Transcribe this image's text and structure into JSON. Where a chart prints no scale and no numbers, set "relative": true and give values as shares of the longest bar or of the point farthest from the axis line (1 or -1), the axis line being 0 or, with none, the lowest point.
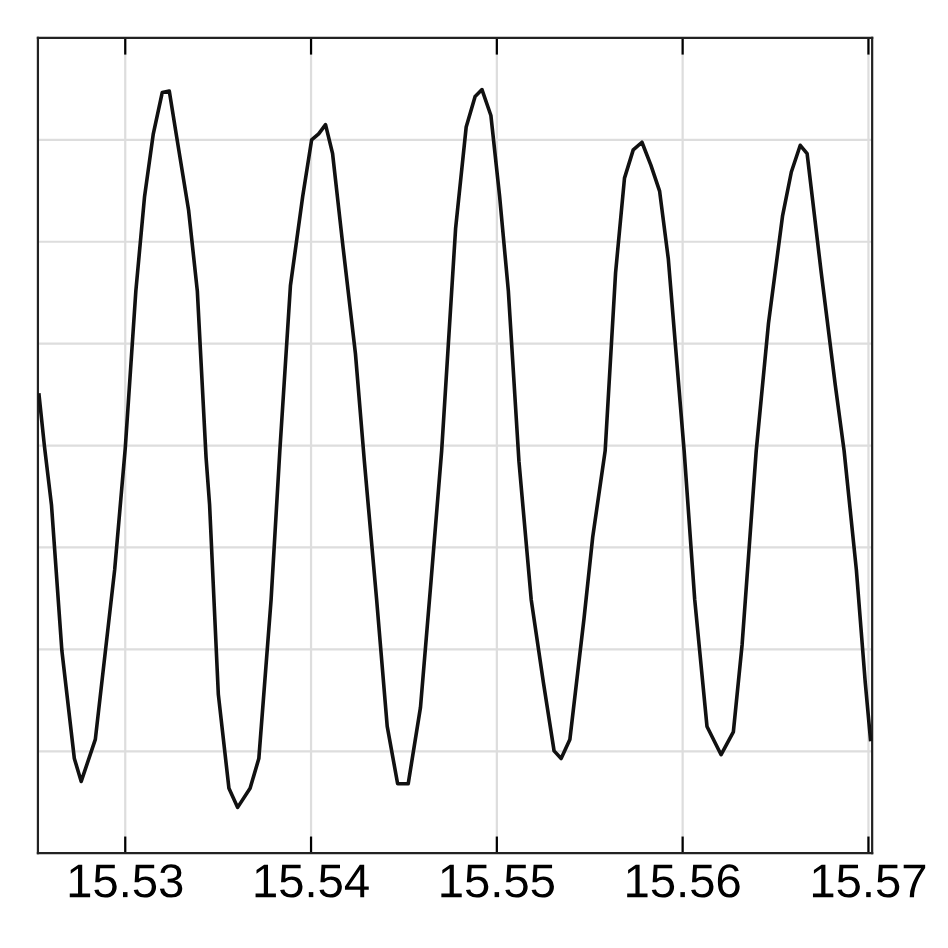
{
  "chart_data": {
    "type": "line",
    "relative": true,
    "grid": true,
    "color": "#111111",
    "xlim": [
      15.5253,
      15.5702
    ],
    "xticks": [
      15.53,
      15.54,
      15.55,
      15.56,
      15.57
    ],
    "x": [
      15.52536,
      15.52565,
      15.52603,
      15.52659,
      15.52726,
      15.52763,
      15.52839,
      15.52943,
      15.53,
      15.53057,
      15.53104,
      15.53151,
      15.53199,
      15.53237,
      15.53274,
      15.53341,
      15.53388,
      15.53435,
      15.53454,
      15.53501,
      15.53558,
      15.53605,
      15.53672,
      15.53719,
      15.53785,
      15.53832,
      15.53889,
      15.53955,
      15.54003,
      15.54041,
      15.54078,
      15.54116,
      15.54173,
      15.54239,
      15.54287,
      15.54353,
      15.5441,
      15.54466,
      15.54523,
      15.54589,
      15.54646,
      15.54703,
      15.54778,
      15.54835,
      15.54883,
      15.5492,
      15.54968,
      15.55015,
      15.55062,
      15.55119,
      15.55185,
      15.55251,
      15.55308,
      15.55346,
      15.55393,
      15.55469,
      15.55516,
      15.55583,
      15.55639,
      15.55687,
      15.55734,
      15.55781,
      15.55829,
      15.55876,
      15.55923,
      15.56008,
      15.56065,
      15.56131,
      15.56207,
      15.56273,
      15.5632,
      15.56396,
      15.56462,
      15.56538,
      15.56585,
      15.56633,
      15.5667,
      15.56746,
      15.56822,
      15.56869,
      15.56935,
      15.56983,
      15.57011
    ],
    "values": [
      0.6,
      0.533,
      0.456,
      0.265,
      0.124,
      0.094,
      0.149,
      0.371,
      0.53,
      0.736,
      0.86,
      0.942,
      0.996,
      0.998,
      0.942,
      0.842,
      0.736,
      0.518,
      0.456,
      0.208,
      0.085,
      0.06,
      0.085,
      0.124,
      0.332,
      0.527,
      0.743,
      0.86,
      0.934,
      0.942,
      0.954,
      0.916,
      0.792,
      0.654,
      0.513,
      0.332,
      0.166,
      0.091,
      0.091,
      0.191,
      0.357,
      0.527,
      0.818,
      0.951,
      0.991,
      1.0,
      0.966,
      0.86,
      0.736,
      0.513,
      0.332,
      0.223,
      0.134,
      0.124,
      0.149,
      0.307,
      0.414,
      0.527,
      0.76,
      0.884,
      0.921,
      0.931,
      0.901,
      0.867,
      0.778,
      0.527,
      0.332,
      0.166,
      0.129,
      0.159,
      0.273,
      0.527,
      0.694,
      0.835,
      0.892,
      0.927,
      0.916,
      0.76,
      0.612,
      0.527,
      0.371,
      0.223,
      0.149
    ]
  }
}
